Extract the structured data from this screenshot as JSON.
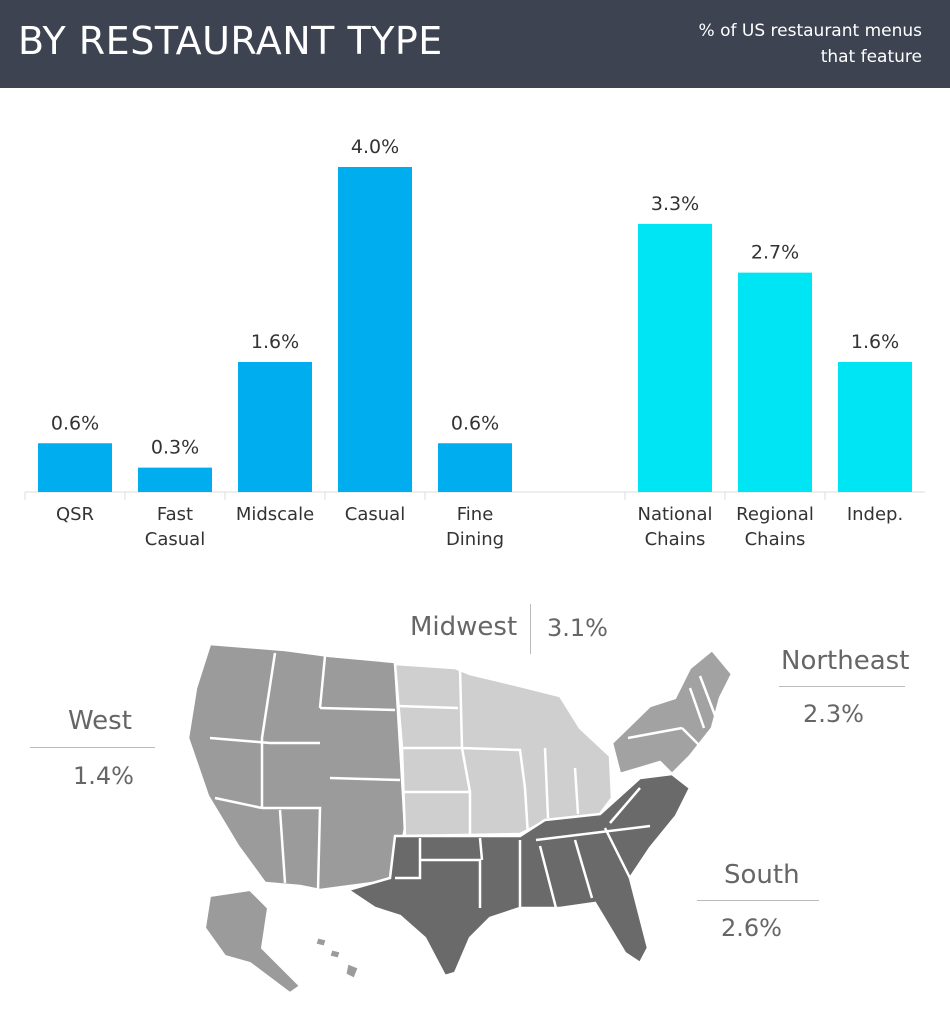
{
  "header": {
    "title": "BY RESTAURANT TYPE",
    "subtitle_line1": "% of US restaurant menus",
    "subtitle_line2": "that feature",
    "bg_color": "#3d4351"
  },
  "chart_data": {
    "type": "bar",
    "colors": {
      "segment": "#00adef",
      "ownership": "#00e5f4"
    },
    "groups": [
      {
        "categories": [
          [
            "QSR"
          ],
          [
            "Fast",
            "Casual"
          ],
          [
            "Midscale"
          ],
          [
            "Casual"
          ],
          [
            "Fine",
            "Dining"
          ]
        ],
        "values": [
          0.6,
          0.3,
          1.6,
          4.0,
          0.6
        ],
        "labels": [
          "0.6%",
          "0.3%",
          "1.6%",
          "4.0%",
          "0.6%"
        ],
        "color_key": "segment"
      },
      {
        "categories": [
          [
            "National",
            "Chains"
          ],
          [
            "Regional",
            "Chains"
          ],
          [
            "Indep."
          ]
        ],
        "values": [
          3.3,
          2.7,
          1.6
        ],
        "labels": [
          "3.3%",
          "2.7%",
          "1.6%"
        ],
        "color_key": "ownership"
      }
    ],
    "ylim": [
      0,
      4.0
    ],
    "grid": false
  },
  "regions": {
    "midwest": {
      "name": "Midwest",
      "value": "3.1%",
      "color": "#cfcfcf"
    },
    "northeast": {
      "name": "Northeast",
      "value": "2.3%",
      "color": "#a2a2a2"
    },
    "west": {
      "name": "West",
      "value": "1.4%",
      "color": "#9a9a9a"
    },
    "south": {
      "name": "South",
      "value": "2.6%",
      "color": "#6a6a6a"
    }
  }
}
